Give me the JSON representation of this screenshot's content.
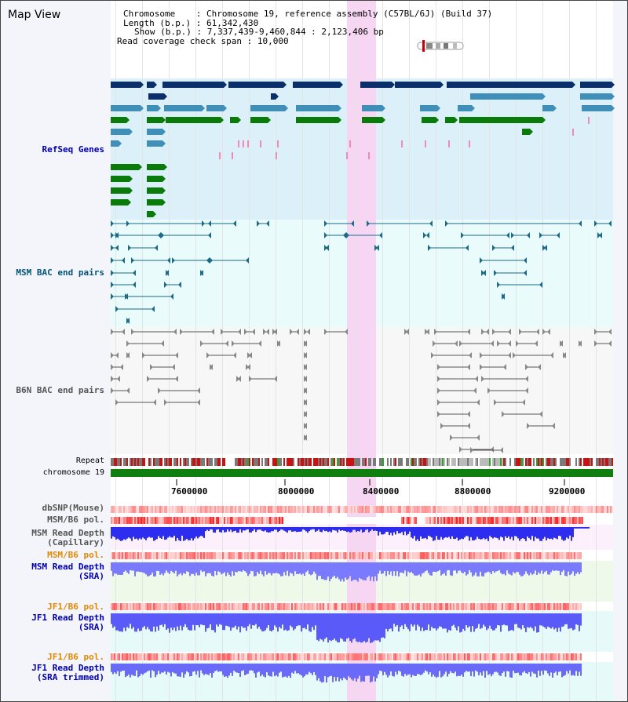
{
  "view_title": "Map View",
  "info": {
    "chromosome_label": "Chromosome",
    "chromosome_value": "Chromosome 19, reference assembly (C57BL/6J) (Build 37)",
    "length_label": "Length (b.p.)",
    "length_value": "61,342,430",
    "show_label": "Show (b.p.)",
    "show_value": "7,337,439-9,460,844 : 2,123,406 bp",
    "coverage_label": "Read coverage check span",
    "coverage_value": "10,000"
  },
  "tracks": {
    "refseq": "RefSeq Genes",
    "msm_bac": "MSM BAC end pairs",
    "b6n_bac": "B6N BAC end pairs",
    "repeat": "Repeat",
    "chromosome": "chromosome 19",
    "dbsnp": "dbSNP(Mouse)",
    "msm_b6_pol_1": "MSM/B6 pol.",
    "msm_read_depth_cap_1": "MSM Read Depth",
    "msm_read_depth_cap_2": "(Capillary)",
    "msm_b6_pol_2": "MSM/B6 pol.",
    "msm_read_depth_sra_1": "MSM Read Depth",
    "msm_read_depth_sra_2": "(SRA)",
    "jf1_b6_pol_1": "JF1/B6 pol.",
    "jf1_read_depth_sra_1": "JF1 Read Depth",
    "jf1_read_depth_sra_2": "(SRA)",
    "jf1_b6_pol_2": "JF1/B6 pol.",
    "jf1_read_depth_trim_1": "JF1 Read Depth",
    "jf1_read_depth_trim_2": "(SRA trimmed)"
  },
  "axis_ticks": [
    "7600000",
    "8000000",
    "8400000",
    "8800000",
    "9200000"
  ],
  "colors": {
    "gene_dark": "#0b2f6b",
    "gene_mid": "#3f8fb8",
    "gene_green": "#0a7a0a",
    "refseq_bg": "#dcf0fa",
    "bac_msm": "#1a6a8a",
    "bac_b6n": "#555555",
    "highlight": "#f6d6f2",
    "depth_blue": "#3333ff",
    "label_blue": "#0000aa",
    "label_orange": "#e08a00"
  }
}
